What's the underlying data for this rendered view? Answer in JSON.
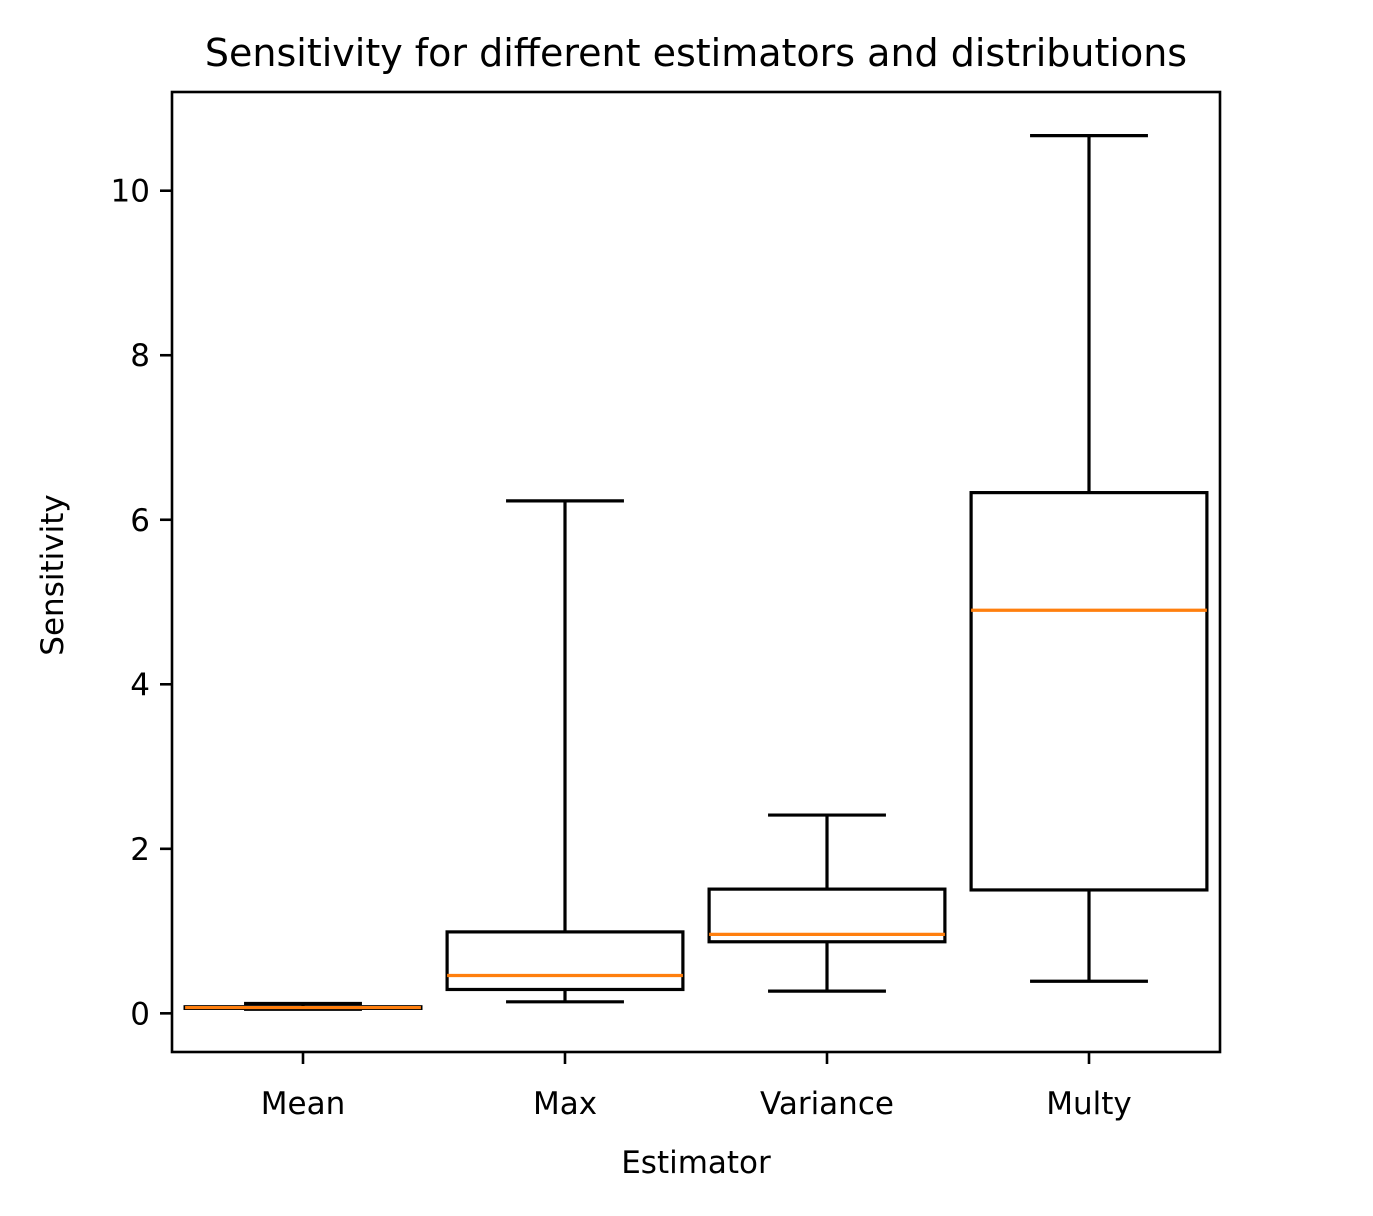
{
  "chart_data": {
    "type": "boxplot",
    "title": "Sensitivity for different estimators and distributions",
    "xlabel": "Estimator",
    "ylabel": "Sensitivity",
    "categories": [
      "Mean",
      "Max",
      "Variance",
      "Multy"
    ],
    "ylim": [
      -0.47,
      11.2
    ],
    "y_ticks": [
      0,
      2,
      4,
      6,
      8,
      10
    ],
    "grid": false,
    "boxes": [
      {
        "name": "Mean",
        "whisker_low": 0.05,
        "q1": 0.06,
        "median": 0.07,
        "q3": 0.08,
        "whisker_high": 0.12
      },
      {
        "name": "Max",
        "whisker_low": 0.14,
        "q1": 0.29,
        "median": 0.46,
        "q3": 0.99,
        "whisker_high": 6.23
      },
      {
        "name": "Variance",
        "whisker_low": 0.27,
        "q1": 0.87,
        "median": 0.96,
        "q3": 1.51,
        "whisker_high": 2.41
      },
      {
        "name": "Multy",
        "whisker_low": 0.39,
        "q1": 1.5,
        "median": 4.9,
        "q3": 6.33,
        "whisker_high": 10.67
      }
    ],
    "colors": {
      "box": "#000000",
      "median": "#ff7f0e"
    }
  }
}
